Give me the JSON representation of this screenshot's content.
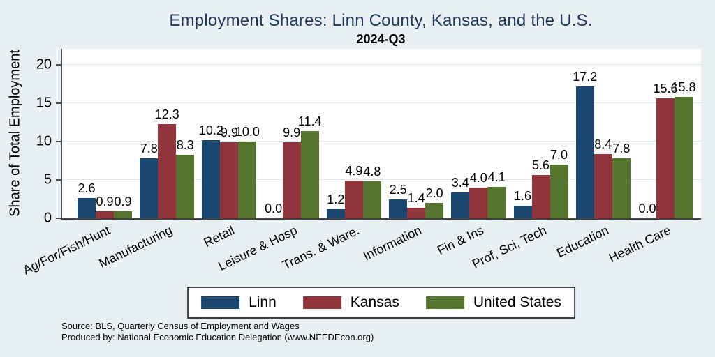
{
  "chart_data": {
    "type": "bar",
    "title": "Employment Shares: Linn County, Kansas, and the U.S.",
    "subtitle": "2024-Q3",
    "ylabel": "Share of Total Employment",
    "xlabel": "",
    "ylim": [
      0,
      22
    ],
    "yticks": [
      0,
      5,
      10,
      15,
      20
    ],
    "grid": true,
    "legend_position": "bottom",
    "bar_labels": true,
    "categories": [
      "Ag/For/Fish/Hunt",
      "Manufacturing",
      "Retail",
      "Leisure & Hosp",
      "Trans. & Ware.",
      "Information",
      "Fin & Ins",
      "Prof, Sci, Tech",
      "Education",
      "Health Care"
    ],
    "series": [
      {
        "name": "Linn",
        "color": "#1a476f",
        "values": [
          2.6,
          7.8,
          10.2,
          0.0,
          1.2,
          2.5,
          3.4,
          1.6,
          17.2,
          0.0
        ]
      },
      {
        "name": "Kansas",
        "color": "#90353b",
        "values": [
          0.9,
          12.3,
          9.9,
          9.9,
          4.9,
          1.4,
          4.0,
          5.6,
          8.4,
          15.6
        ]
      },
      {
        "name": "United States",
        "color": "#55752f",
        "values": [
          0.9,
          8.3,
          10.0,
          11.4,
          4.8,
          2.0,
          4.1,
          7.0,
          7.8,
          15.8
        ]
      }
    ]
  },
  "notes": {
    "source": "Source: BLS, Quarterly Census of Employment and Wages",
    "produced_by": "Produced by: National Economic Education Delegation (www.NEEDEcon.org)"
  },
  "colors": {
    "background": "#e9f0f4",
    "plot_background": "#ffffff",
    "title_text": "#21395c",
    "axis_line": "#4d4d4d",
    "gridline": "#dfeaf0",
    "linn": "#1a476f",
    "kansas": "#90353b",
    "united_states": "#55752f"
  }
}
